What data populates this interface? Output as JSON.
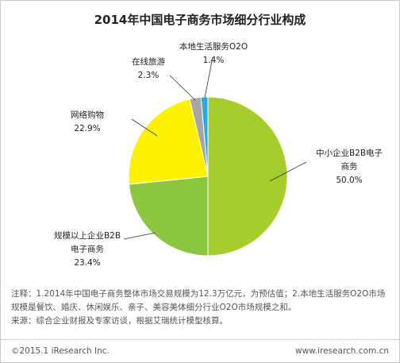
{
  "chart_data": {
    "type": "pie",
    "title": "2014年中国电子商务市场细分行业构成",
    "slices": [
      {
        "label_lines": [
          "中小企业B2B电子",
          "商务"
        ],
        "value_text": "50.0%",
        "value": 50.0,
        "color": "#a6cc2e"
      },
      {
        "label_lines": [
          "规模以上企业B2B",
          "电子商务"
        ],
        "value_text": "23.4%",
        "value": 23.4,
        "color": "#8cc63f"
      },
      {
        "label_lines": [
          "网络购物"
        ],
        "value_text": "22.9%",
        "value": 22.9,
        "color": "#fff200"
      },
      {
        "label_lines": [
          "在线旅游"
        ],
        "value_text": "2.3%",
        "value": 2.3,
        "color": "#a6a6a6"
      },
      {
        "label_lines": [
          "本地生活服务O2O"
        ],
        "value_text": "1.4%",
        "value": 1.4,
        "color": "#29abe2"
      }
    ]
  },
  "notes": [
    "注释：1.2014年中国电子商务整体市场交易规模为12.3万亿元，为预估值；2.本地生活服务O2O市场",
    "规模是餐饮、婚庆、休闲娱乐、亲子、美容美体细分行业O2O市场规模之和。",
    "来源：综合企业财报及专家访谈，根据艾瑞统计模型核算。"
  ],
  "footer": {
    "copyright": "©2015.1 iResearch Inc.",
    "website": "www.iresearch.com.cn"
  }
}
